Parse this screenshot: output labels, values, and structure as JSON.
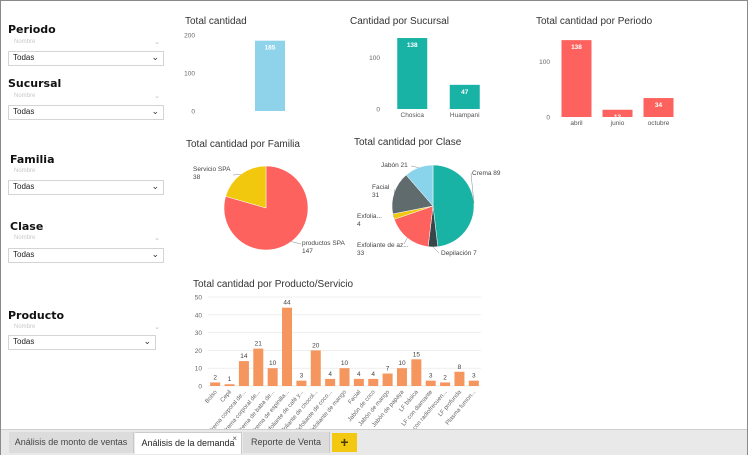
{
  "slicers": {
    "periodo": {
      "title": "Periodo",
      "sub": "Nombre",
      "value": "Todas"
    },
    "sucursal": {
      "title": "Sucursal",
      "sub": "Nombre",
      "value": "Todas"
    },
    "familia": {
      "title": "Familia",
      "sub": "Nombre",
      "value": "Todas"
    },
    "clase": {
      "title": "Clase",
      "sub": "Nombre",
      "value": "Todas"
    },
    "producto": {
      "title": "Producto",
      "sub": "Nombre",
      "value": "Todas"
    }
  },
  "tabs": [
    {
      "label": "Análisis de monto de ventas"
    },
    {
      "label": "Análisis de la demanda",
      "close": "×"
    },
    {
      "label": "Reporte de Venta"
    }
  ],
  "add_tab_label": "+",
  "colors": {
    "blue": "#8fd3ea",
    "teal": "#19b3a6",
    "red": "#fd625e",
    "orange": "#f5965f",
    "yellow": "#f2c80f",
    "gray": "#5f6b6d",
    "dark": "#374649",
    "lightblue": "#8ad4eb"
  },
  "chart_data": [
    {
      "type": "bar",
      "title": "Total cantidad",
      "categories": [
        ""
      ],
      "values": [
        185
      ],
      "yticks": [
        0,
        100,
        200
      ],
      "ylim": [
        0,
        200
      ]
    },
    {
      "type": "bar",
      "title": "Cantidad por Sucursal",
      "categories": [
        "Chosica",
        "Huampani"
      ],
      "values": [
        138,
        47
      ],
      "yticks": [
        0,
        100
      ],
      "ylim": [
        0,
        140
      ]
    },
    {
      "type": "bar",
      "title": "Total cantidad por Periodo",
      "categories": [
        "abril",
        "junio",
        "octubre"
      ],
      "values": [
        138,
        13,
        34
      ],
      "yticks": [
        0,
        100
      ],
      "ylim": [
        0,
        140
      ]
    },
    {
      "type": "pie",
      "title": "Total cantidad por Familia",
      "slices": [
        {
          "label": "productos SPA",
          "value": 147
        },
        {
          "label": "Servicio SPA",
          "value": 38
        }
      ]
    },
    {
      "type": "pie",
      "title": "Total cantidad por Clase",
      "slices": [
        {
          "label": "Crema",
          "value": 89
        },
        {
          "label": "Depilación",
          "value": 7
        },
        {
          "label": "Exfoliante de az...",
          "value": 33
        },
        {
          "label": "Exfolia...",
          "value": 4
        },
        {
          "label": "Facial",
          "value": 31
        },
        {
          "label": "Jabón",
          "value": 21
        }
      ]
    },
    {
      "type": "bar",
      "title": "Total cantidad por Producto/Servicio",
      "categories": [
        "Bolso",
        "Cepil",
        "Crema corporal de...",
        "Crema corporal de...",
        "Crema de baba de...",
        "Crema de espinilla...",
        "Exfoliante de café y...",
        "Exfoliante de chocol...",
        "Exfoliante de coco...",
        "Exfoliante de mango",
        "Facial",
        "Jabón de coco",
        "Jabón de mango",
        "Jabón de papaya",
        "LF básica",
        "LF con diamante",
        "LF con radiofrecuen...",
        "LF profunda",
        "Plasma fumon..."
      ],
      "values": [
        2,
        1,
        14,
        21,
        10,
        44,
        3,
        20,
        4,
        10,
        4,
        4,
        7,
        10,
        15,
        3,
        2,
        8,
        3
      ],
      "yticks": [
        0,
        10,
        20,
        30,
        40,
        50
      ],
      "ylim": [
        0,
        50
      ]
    }
  ]
}
